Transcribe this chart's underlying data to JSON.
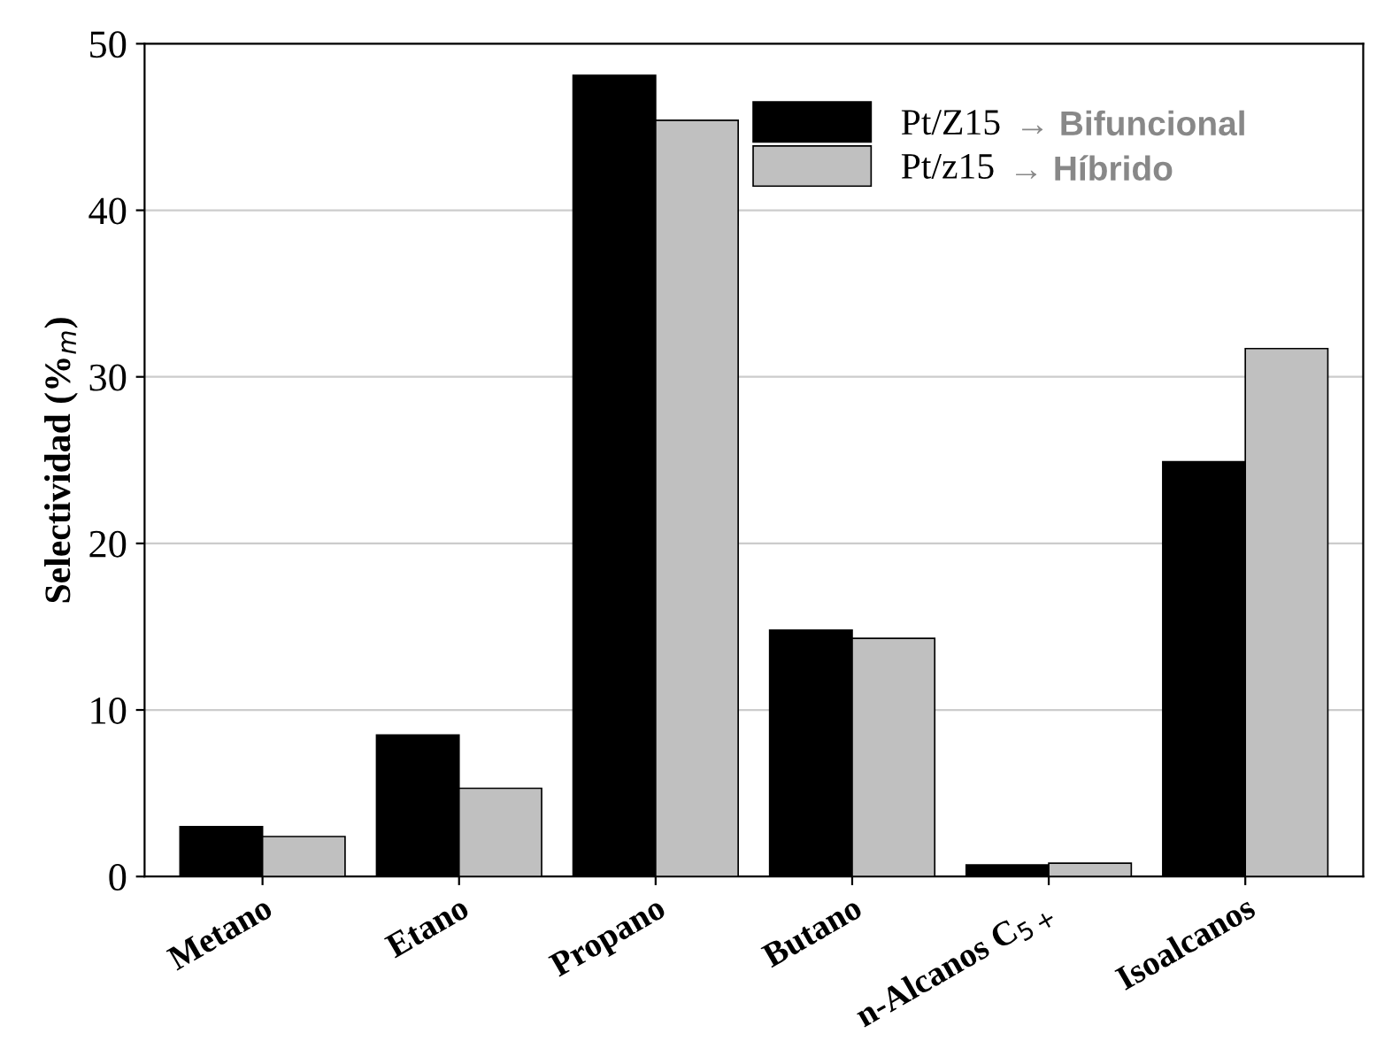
{
  "chart_data": {
    "type": "bar",
    "ylabel": "Selectividad (%$_{m}$)",
    "categories": [
      "Metano",
      "Etano",
      "Propano",
      "Butano",
      "n-Alcanos C$_{5+}$",
      "Isoalcanos"
    ],
    "series": [
      {
        "name": "Pt/Z15",
        "color": "#000000",
        "values": [
          3.0,
          8.5,
          48.1,
          14.8,
          0.7,
          24.9
        ]
      },
      {
        "name": "Pt/z15",
        "color": "#c0c0c0",
        "values": [
          2.4,
          5.3,
          45.4,
          14.3,
          0.8,
          31.7
        ]
      }
    ],
    "annotations": [
      "→ Bifuncional",
      "→ Híbrido"
    ],
    "ylim": [
      0,
      50
    ],
    "yticks": [
      0,
      10,
      20,
      30,
      40,
      50
    ],
    "grid": "y",
    "legend": "top right"
  }
}
